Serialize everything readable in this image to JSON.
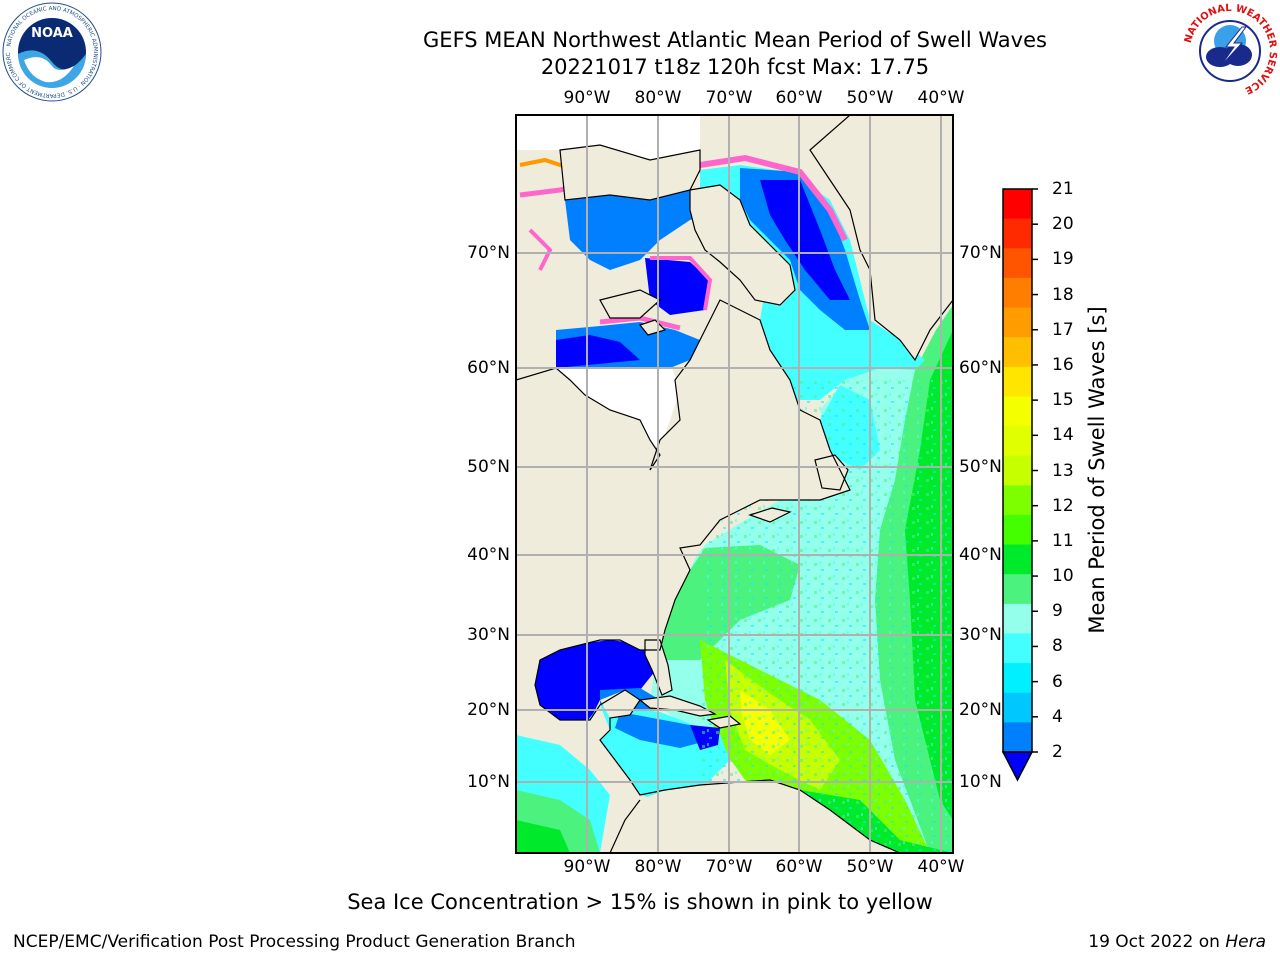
{
  "title_line1": "GEFS MEAN Northwest Atlantic Mean Period of Swell Waves",
  "title_line2": "20221017 t18z 120h fcst   Max: 17.75",
  "logos": {
    "noaa_text": "NOAA",
    "noaa_ring_text": "NATIONAL OCEANIC AND ATMOSPHERIC ADMINISTRATION · U.S. DEPARTMENT OF COMMERCE",
    "nws_ring_text": "NATIONAL WEATHER SERVICE"
  },
  "map": {
    "lon_labels": [
      "90°W",
      "80°W",
      "70°W",
      "60°W",
      "50°W",
      "40°W"
    ],
    "lat_labels": [
      "70°N",
      "60°N",
      "50°N",
      "40°N",
      "30°N",
      "20°N",
      "10°N"
    ],
    "colors": {
      "land": "#efecdc",
      "no_data": "#ffffff",
      "grid": "#b0b0b0",
      "coast": "#000000"
    }
  },
  "colorbar": {
    "label": "Mean Period of Swell Waves [s]",
    "ticks": [
      "21",
      "20",
      "19",
      "18",
      "17",
      "16",
      "15",
      "14",
      "13",
      "12",
      "11",
      "10",
      "9",
      "8",
      "6",
      "4",
      "2"
    ],
    "colors_high_to_low": [
      "#ff0000",
      "#ff2a00",
      "#ff5400",
      "#ff7e00",
      "#ff9c00",
      "#ffbe00",
      "#ffe600",
      "#f4ff00",
      "#e0ff00",
      "#c6ff00",
      "#7eff00",
      "#43ff00",
      "#00ea2c",
      "#4bf27d",
      "#94ffea",
      "#43ffff",
      "#00f0ff",
      "#00c8ff",
      "#0080ff"
    ],
    "under_color": "#0000ff"
  },
  "footnote": "Sea Ice Concentration > 15% is shown in pink to yellow",
  "credit": "NCEP/EMC/Verification Post Processing Product Generation Branch",
  "date_prefix": "19 Oct 2022 on",
  "date_host": "Hera"
}
